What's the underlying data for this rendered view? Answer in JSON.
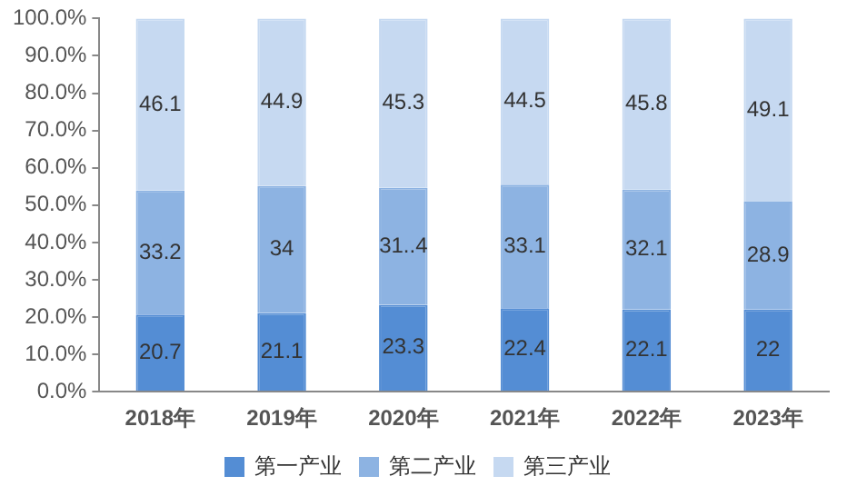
{
  "chart_data": {
    "type": "bar",
    "stacked": true,
    "categories": [
      "2018年",
      "2019年",
      "2020年",
      "2021年",
      "2022年",
      "2023年"
    ],
    "series": [
      {
        "name": "第一产业",
        "color": "#548dd4",
        "values": [
          20.7,
          21.1,
          23.3,
          22.4,
          22.1,
          22
        ],
        "value_labels": [
          "20.7",
          "21.1",
          "23.3",
          "22.4",
          "22.1",
          "22"
        ]
      },
      {
        "name": "第二产业",
        "color": "#8db3e2",
        "values": [
          33.2,
          34,
          31.4,
          33.1,
          32.1,
          28.9
        ],
        "value_labels": [
          "33.2",
          "34",
          "31..4",
          "33.1",
          "32.1",
          "28.9"
        ]
      },
      {
        "name": "第三产业",
        "color": "#c6d9f1",
        "values": [
          46.1,
          44.9,
          45.3,
          44.5,
          45.8,
          49.1
        ],
        "value_labels": [
          "46.1",
          "44.9",
          "45.3",
          "44.5",
          "45.8",
          "49.1"
        ]
      }
    ],
    "ylim": [
      0,
      100
    ],
    "yticks": [
      {
        "value": 0,
        "label": "0.0%"
      },
      {
        "value": 10,
        "label": "10.0%"
      },
      {
        "value": 20,
        "label": "20.0%"
      },
      {
        "value": 30,
        "label": "30.0%"
      },
      {
        "value": 40,
        "label": "40.0%"
      },
      {
        "value": 50,
        "label": "50.0%"
      },
      {
        "value": 60,
        "label": "60.0%"
      },
      {
        "value": 70,
        "label": "70.0%"
      },
      {
        "value": 80,
        "label": "80.0%"
      },
      {
        "value": 90,
        "label": "90.0%"
      },
      {
        "value": 100,
        "label": "100.0%"
      }
    ],
    "grid": false,
    "legend": "bottom"
  }
}
